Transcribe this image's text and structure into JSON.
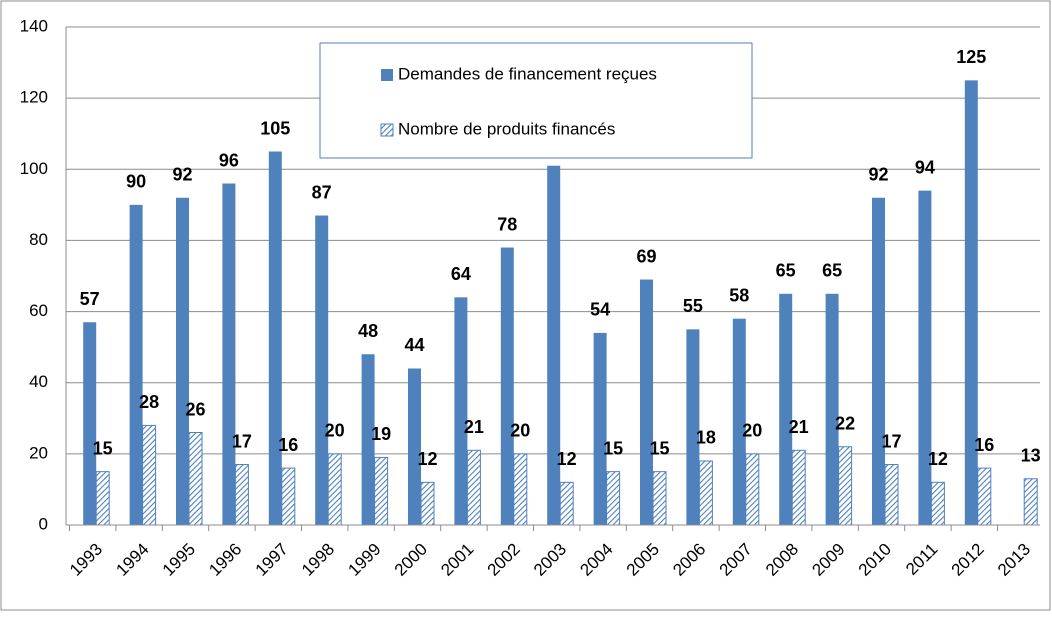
{
  "chart_data": {
    "type": "bar",
    "categories": [
      "1993",
      "1994",
      "1995",
      "1996",
      "1997",
      "1998",
      "1999",
      "2000",
      "2001",
      "2002",
      "2003",
      "2004",
      "2005",
      "2006",
      "2007",
      "2008",
      "2009",
      "2010",
      "2011",
      "2012",
      "2013"
    ],
    "series": [
      {
        "name": "Demandes de financement reçues",
        "color": "#4f81bd",
        "pattern": "solid",
        "values": [
          57,
          90,
          92,
          96,
          105,
          87,
          48,
          44,
          64,
          78,
          101,
          54,
          69,
          55,
          58,
          65,
          65,
          92,
          94,
          125,
          null
        ]
      },
      {
        "name": "Nombre de produits financés",
        "color": "#4f81bd",
        "pattern": "hatch",
        "values": [
          15,
          28,
          26,
          17,
          16,
          20,
          19,
          12,
          21,
          20,
          12,
          15,
          15,
          18,
          20,
          21,
          22,
          17,
          12,
          16,
          13
        ]
      }
    ],
    "ylim": [
      0,
      140
    ],
    "yticks": [
      0,
      20,
      40,
      60,
      80,
      100,
      120,
      140
    ],
    "grid": true,
    "legend": "top-center",
    "data_labels": true
  }
}
